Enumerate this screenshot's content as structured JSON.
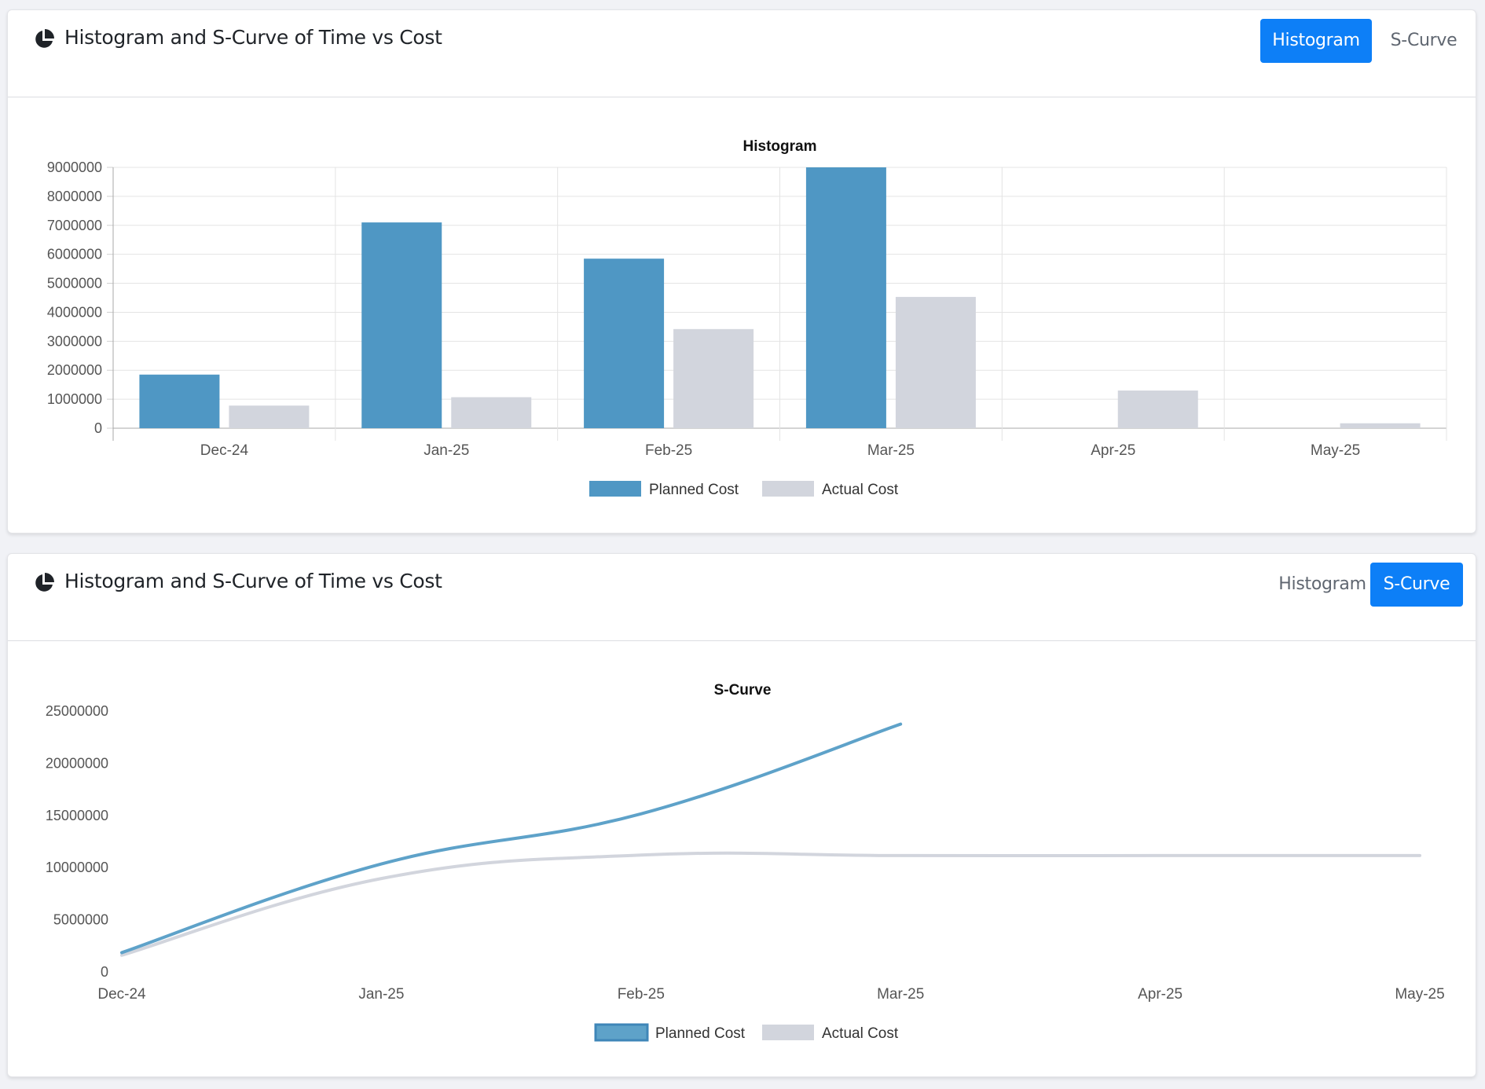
{
  "histogram_card": {
    "title": "Histogram and S-Curve of Time vs Cost",
    "icon": "pie-chart-icon",
    "tabs": {
      "histogram": "Histogram",
      "scurve": "S-Curve"
    },
    "active_tab": "histogram"
  },
  "scurve_card": {
    "title": "Histogram and S-Curve of Time vs Cost",
    "icon": "pie-chart-icon",
    "tabs": {
      "histogram": "Histogram",
      "scurve": "S-Curve"
    },
    "active_tab": "scurve"
  },
  "chart_data": [
    {
      "type": "bar",
      "title": "Histogram",
      "categories": [
        "Dec-24",
        "Jan-25",
        "Feb-25",
        "Mar-25",
        "Apr-25",
        "May-25"
      ],
      "series": [
        {
          "name": "Planned Cost",
          "color": "#4f97c4",
          "values": [
            1850000,
            7100000,
            5850000,
            9000000,
            0,
            0
          ]
        },
        {
          "name": "Actual Cost",
          "color": "#d2d5dd",
          "values": [
            780000,
            1070000,
            3420000,
            4530000,
            1300000,
            170000
          ]
        }
      ],
      "yticks": [
        "0",
        "1000000",
        "2000000",
        "3000000",
        "4000000",
        "5000000",
        "6000000",
        "7000000",
        "8000000",
        "9000000"
      ],
      "ylim": [
        0,
        9000000
      ],
      "grid": true,
      "legend": "bottom"
    },
    {
      "type": "line",
      "title": "S-Curve",
      "categories": [
        "Dec-24",
        "Jan-25",
        "Feb-25",
        "Mar-25",
        "Apr-25",
        "May-25"
      ],
      "series": [
        {
          "name": "Planned Cost",
          "color": "#5ea2c9",
          "values": [
            1850000,
            10350000,
            15150000,
            23750000,
            null,
            null
          ]
        },
        {
          "name": "Actual Cost",
          "color": "#d2d5dd",
          "values": [
            1600000,
            8950000,
            11200000,
            11150000,
            11150000,
            11150000
          ]
        }
      ],
      "yticks": [
        "0",
        "5000000",
        "10000000",
        "15000000",
        "20000000",
        "25000000"
      ],
      "ylim": [
        0,
        25000000
      ],
      "grid": false,
      "legend": "bottom"
    }
  ]
}
